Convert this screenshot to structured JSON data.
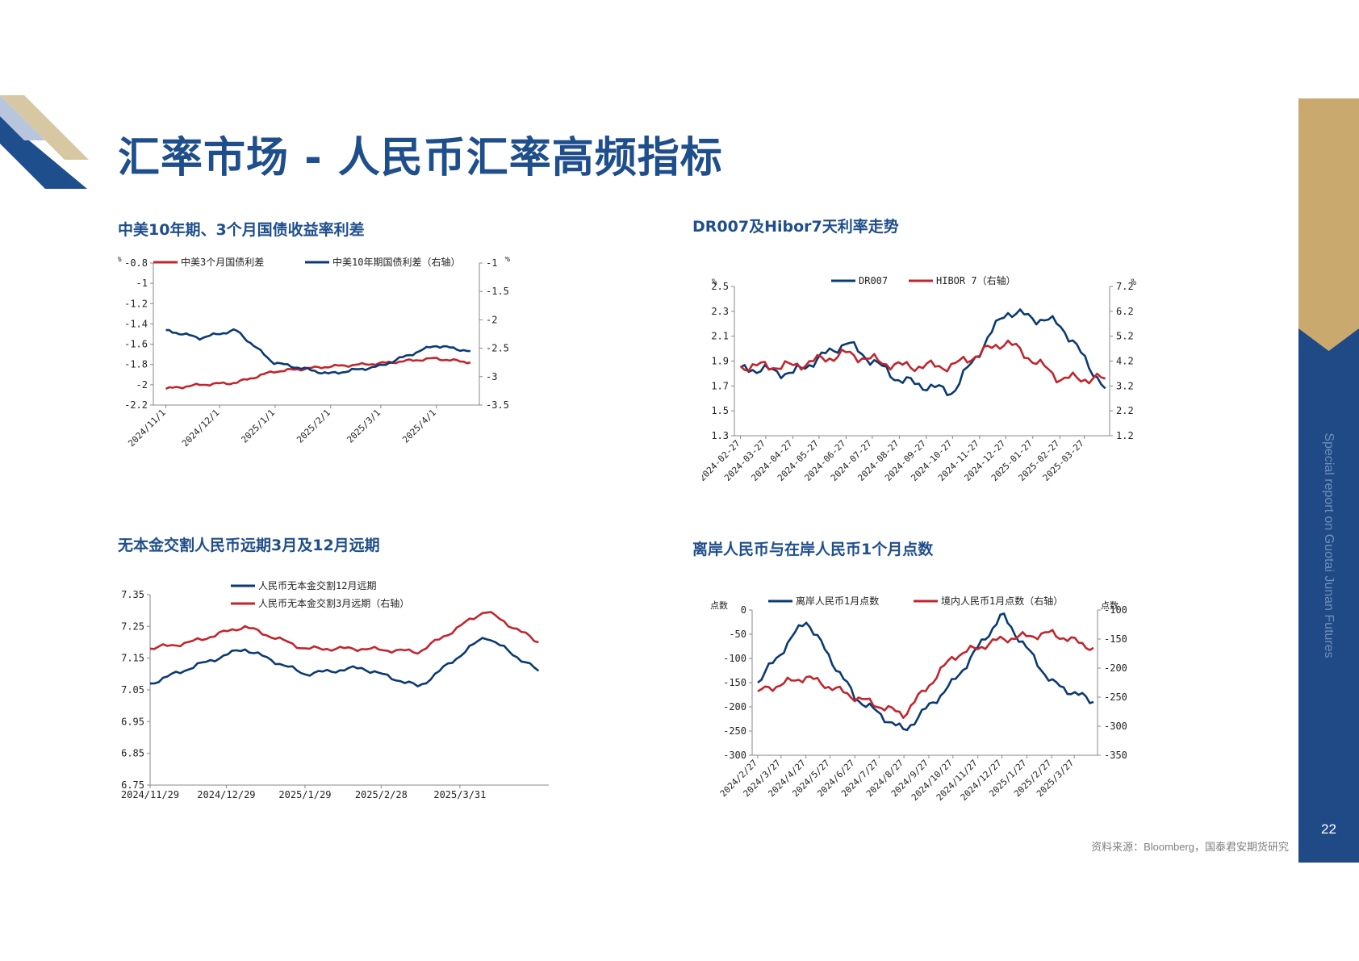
{
  "page": {
    "title": "汇率市场 - 人民币汇率高频指标",
    "source": "资料来源：Bloomberg，国泰君安期货研究",
    "side_label": "Special report on Guotai Junan Futures",
    "page_number": "22"
  },
  "colors": {
    "blue": "#0b3a73",
    "red": "#c0262d",
    "brand": "#1f4e8c",
    "gold": "#c9a96e",
    "sidebar": "#1f4a85"
  },
  "chart_data": [
    {
      "type": "line",
      "title": "中美10年期、3个月国债收益率利差",
      "y_unit_left": "%",
      "y_unit_right": "%",
      "x_ticks": [
        "2024/11/1",
        "2024/12/1",
        "2025/1/1",
        "2025/2/1",
        "2025/3/1",
        "2025/4/1"
      ],
      "y_left": {
        "range": [
          -2.2,
          -0.8
        ],
        "ticks": [
          "-0.8",
          "-1",
          "-1.2",
          "-1.4",
          "-1.6",
          "-1.8",
          "-2",
          "-2.2"
        ]
      },
      "y_right": {
        "range": [
          -3.5,
          -1
        ],
        "ticks": [
          "-1",
          "-1.5",
          "-2",
          "-2.5",
          "-3",
          "-3.5"
        ]
      },
      "series": [
        {
          "name": "中美3个月国债利差",
          "axis": "left",
          "color": "#c0262d",
          "x": [
            "2024/11/1",
            "2024/11/20",
            "2024/12/10",
            "2024/12/31",
            "2025/1/31",
            "2025/2/28",
            "2025/3/31",
            "2025/4/20"
          ],
          "y": [
            -2.04,
            -2.0,
            -1.98,
            -1.87,
            -1.82,
            -1.79,
            -1.74,
            -1.78
          ]
        },
        {
          "name": "中美10年期国债利差（右轴）",
          "axis": "right",
          "color": "#0b3a73",
          "x": [
            "2024/11/1",
            "2024/11/20",
            "2024/12/10",
            "2024/12/31",
            "2025/1/31",
            "2025/2/28",
            "2025/3/31",
            "2025/4/20"
          ],
          "y": [
            -2.18,
            -2.32,
            -2.18,
            -2.75,
            -2.95,
            -2.82,
            -2.45,
            -2.55
          ]
        }
      ]
    },
    {
      "type": "line",
      "title": "DR007及Hibor7天利率走势",
      "y_unit_left": "%",
      "y_unit_right": "%",
      "x_ticks": [
        "2024-02-27",
        "2024-03-27",
        "2024-04-27",
        "2024-05-27",
        "2024-06-27",
        "2024-07-27",
        "2024-08-27",
        "2024-09-27",
        "2024-10-27",
        "2024-11-27",
        "2024-12-27",
        "2025-01-27",
        "2025-02-27",
        "2025-03-27"
      ],
      "y_left": {
        "range": [
          1.3,
          2.5
        ],
        "ticks": [
          "2.5",
          "2.3",
          "2.1",
          "1.9",
          "1.7",
          "1.5",
          "1.3"
        ]
      },
      "y_right": {
        "range": [
          1.2,
          7.2
        ],
        "ticks": [
          "7.2",
          "6.2",
          "5.2",
          "4.2",
          "3.2",
          "2.2",
          "1.2"
        ]
      },
      "series": [
        {
          "name": "DR007",
          "axis": "left",
          "color": "#0b3a73",
          "x": [
            "2024-02-27",
            "2024-04-27",
            "2024-06-27",
            "2024-08-27",
            "2024-10-27",
            "2024-12-27",
            "2025-02-27",
            "2025-04-20"
          ],
          "y": [
            1.85,
            1.8,
            2.05,
            1.75,
            1.65,
            2.3,
            2.2,
            1.68
          ]
        },
        {
          "name": "HIBOR 7（右轴）",
          "axis": "right",
          "color": "#c0262d",
          "x": [
            "2024-02-27",
            "2024-04-27",
            "2024-06-27",
            "2024-08-27",
            "2024-10-27",
            "2024-12-27",
            "2025-02-27",
            "2025-04-20"
          ],
          "y": [
            4.0,
            4.0,
            4.5,
            4.0,
            4.0,
            5.0,
            3.5,
            3.5
          ]
        }
      ]
    },
    {
      "type": "line",
      "title": "无本金交割人民币远期3月及12月远期",
      "x_ticks": [
        "2024/11/29",
        "2024/12/29",
        "2025/1/29",
        "2025/2/28",
        "2025/3/31"
      ],
      "y_left": {
        "range": [
          6.75,
          7.35
        ],
        "ticks": [
          "7.35",
          "7.25",
          "7.15",
          "7.05",
          "6.95",
          "6.85",
          "6.75"
        ]
      },
      "series": [
        {
          "name": "人民币无本金交割12月远期",
          "axis": "left",
          "color": "#0b3a73",
          "x": [
            "2024/11/29",
            "2024/12/15",
            "2025/1/5",
            "2025/1/29",
            "2025/2/20",
            "2025/3/15",
            "2025/4/10",
            "2025/5/1"
          ],
          "y": [
            7.07,
            7.12,
            7.18,
            7.1,
            7.12,
            7.06,
            7.22,
            7.11
          ]
        },
        {
          "name": "人民币无本金交割3月远期（右轴）",
          "axis": "left",
          "color": "#c0262d",
          "x": [
            "2024/11/29",
            "2024/12/15",
            "2025/1/5",
            "2025/1/29",
            "2025/2/20",
            "2025/3/15",
            "2025/4/10",
            "2025/5/1"
          ],
          "y": [
            7.18,
            7.2,
            7.25,
            7.18,
            7.18,
            7.17,
            7.3,
            7.2
          ]
        }
      ]
    },
    {
      "type": "line",
      "title": "离岸人民币与在岸人民币1个月点数",
      "y_unit_left": "点数",
      "y_unit_right": "点数",
      "x_ticks": [
        "2024/2/27",
        "2024/3/27",
        "2024/4/27",
        "2024/5/27",
        "2024/6/27",
        "2024/7/27",
        "2024/8/27",
        "2024/9/27",
        "2024/10/27",
        "2024/11/27",
        "2024/12/27",
        "2025/1/27",
        "2025/2/27",
        "2025/3/27"
      ],
      "y_left": {
        "range": [
          -300,
          0
        ],
        "ticks": [
          "0",
          "-50",
          "-100",
          "-150",
          "-200",
          "-250",
          "-300"
        ]
      },
      "y_right": {
        "range": [
          -350,
          -100
        ],
        "ticks": [
          "-100",
          "-150",
          "-200",
          "-250",
          "-300",
          "-350"
        ]
      },
      "series": [
        {
          "name": "离岸人民币1月点数",
          "axis": "left",
          "color": "#0b3a73",
          "x": [
            "2024/2/27",
            "2024/4/27",
            "2024/6/27",
            "2024/8/27",
            "2024/10/27",
            "2024/12/27",
            "2025/2/27",
            "2025/4/20"
          ],
          "y": [
            -150,
            -20,
            -180,
            -250,
            -150,
            -10,
            -150,
            -190
          ]
        },
        {
          "name": "境内人民币1月点数（右轴）",
          "axis": "right",
          "color": "#c0262d",
          "x": [
            "2024/2/27",
            "2024/4/27",
            "2024/6/27",
            "2024/8/27",
            "2024/10/27",
            "2024/12/27",
            "2025/2/27",
            "2025/4/20"
          ],
          "y": [
            -240,
            -215,
            -250,
            -280,
            -180,
            -150,
            -140,
            -165
          ]
        }
      ]
    }
  ]
}
